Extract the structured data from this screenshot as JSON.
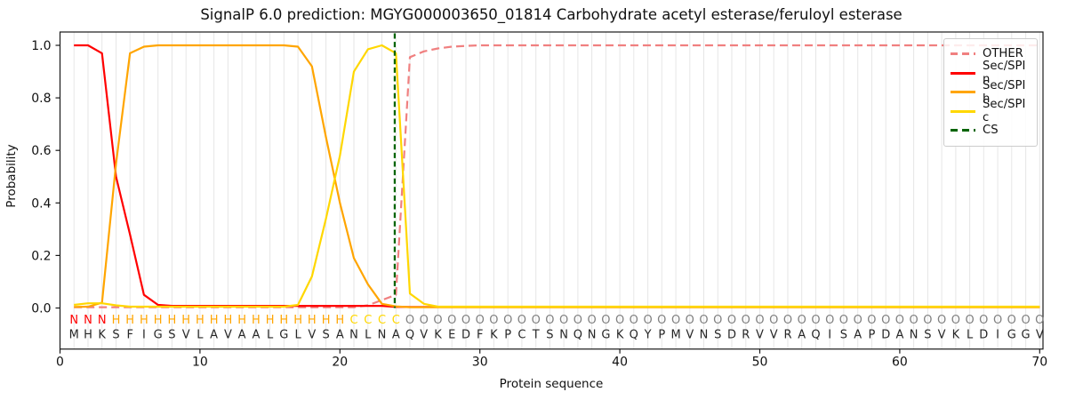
{
  "chart_data": {
    "type": "line",
    "title": "SignalP 6.0 prediction: MGYG000003650_01814 Carbohydrate acetyl esterase/feruloyl esterase",
    "xlabel": "Protein sequence",
    "ylabel": "Probability",
    "xlim": [
      0,
      70.2
    ],
    "ylim": [
      -0.15,
      1.05
    ],
    "x_ticks": [
      0,
      10,
      20,
      30,
      40,
      50,
      60,
      70
    ],
    "y_ticks": [
      "0.0",
      "0.2",
      "0.4",
      "0.6",
      "0.8",
      "1.0"
    ],
    "grid": "vertical-per-residue",
    "legend_position": "upper right",
    "positions_start": 1,
    "series": [
      {
        "name": "OTHER",
        "color": "#f08080",
        "style": "dashed",
        "values": [
          0.003,
          0.003,
          0.003,
          0.003,
          0.003,
          0.003,
          0.003,
          0.003,
          0.003,
          0.003,
          0.003,
          0.003,
          0.003,
          0.003,
          0.003,
          0.003,
          0.003,
          0.003,
          0.003,
          0.003,
          0.003,
          0.01,
          0.03,
          0.05,
          0.955,
          0.977,
          0.988,
          0.995,
          0.998,
          1.0,
          1.0,
          1.0,
          1.0,
          1.0,
          1.0,
          1.0,
          1.0,
          1.0,
          1.0,
          1.0,
          1.0,
          1.0,
          1.0,
          1.0,
          1.0,
          1.0,
          1.0,
          1.0,
          1.0,
          1.0,
          1.0,
          1.0,
          1.0,
          1.0,
          1.0,
          1.0,
          1.0,
          1.0,
          1.0,
          1.0,
          1.0,
          1.0,
          1.0,
          1.0,
          1.0,
          1.0,
          1.0,
          1.0,
          1.0,
          1.0
        ]
      },
      {
        "name": "Sec/SPI n",
        "color": "#ff0000",
        "style": "solid",
        "values": [
          1.0,
          1.0,
          0.97,
          0.5,
          0.28,
          0.05,
          0.012,
          0.008,
          0.008,
          0.008,
          0.008,
          0.008,
          0.008,
          0.008,
          0.008,
          0.008,
          0.008,
          0.008,
          0.008,
          0.008,
          0.008,
          0.008,
          0.008,
          0.004,
          0.004,
          0.004,
          0.004,
          0.004,
          0.004,
          0.004,
          0.004,
          0.004,
          0.004,
          0.004,
          0.004,
          0.004,
          0.004,
          0.004,
          0.004,
          0.004,
          0.004,
          0.004,
          0.004,
          0.004,
          0.004,
          0.004,
          0.004,
          0.004,
          0.004,
          0.004,
          0.004,
          0.004,
          0.004,
          0.004,
          0.004,
          0.004,
          0.004,
          0.004,
          0.004,
          0.004,
          0.004,
          0.004,
          0.004,
          0.004,
          0.004,
          0.004,
          0.004,
          0.004,
          0.004,
          0.004
        ]
      },
      {
        "name": "Sec/SPI h",
        "color": "#ffa500",
        "style": "solid",
        "values": [
          0.004,
          0.005,
          0.02,
          0.55,
          0.97,
          0.995,
          1.0,
          1.0,
          1.0,
          1.0,
          1.0,
          1.0,
          1.0,
          1.0,
          1.0,
          1.0,
          0.995,
          0.92,
          0.65,
          0.4,
          0.19,
          0.09,
          0.016,
          0.006,
          0.003,
          0.003,
          0.003,
          0.003,
          0.003,
          0.003,
          0.003,
          0.003,
          0.003,
          0.003,
          0.003,
          0.003,
          0.003,
          0.003,
          0.003,
          0.003,
          0.003,
          0.003,
          0.003,
          0.003,
          0.003,
          0.003,
          0.003,
          0.003,
          0.003,
          0.003,
          0.003,
          0.003,
          0.003,
          0.003,
          0.003,
          0.003,
          0.003,
          0.003,
          0.003,
          0.003,
          0.003,
          0.003,
          0.003,
          0.003,
          0.003,
          0.003,
          0.003,
          0.003,
          0.003,
          0.003
        ]
      },
      {
        "name": "Sec/SPI c",
        "color": "#ffd700",
        "style": "solid",
        "values": [
          0.012,
          0.018,
          0.018,
          0.01,
          0.005,
          0.005,
          0.005,
          0.005,
          0.005,
          0.005,
          0.005,
          0.005,
          0.005,
          0.005,
          0.005,
          0.005,
          0.012,
          0.12,
          0.34,
          0.58,
          0.9,
          0.985,
          1.0,
          0.97,
          0.055,
          0.016,
          0.005,
          0.005,
          0.005,
          0.005,
          0.005,
          0.005,
          0.005,
          0.005,
          0.005,
          0.005,
          0.005,
          0.005,
          0.005,
          0.005,
          0.005,
          0.005,
          0.005,
          0.005,
          0.005,
          0.005,
          0.005,
          0.005,
          0.005,
          0.005,
          0.005,
          0.005,
          0.005,
          0.005,
          0.005,
          0.005,
          0.005,
          0.005,
          0.005,
          0.005,
          0.005,
          0.005,
          0.005,
          0.005,
          0.005,
          0.005,
          0.005,
          0.005,
          0.005,
          0.005
        ]
      }
    ],
    "cs_line": {
      "name": "CS",
      "color": "#006400",
      "style": "dashed",
      "position": 24
    },
    "sequence": "MHKSFIGSVLAVAALGLVSANLNAQVKEDFKPCTSNQNGKQYPMVNSDRVVRAQISAPDANSVKLDIGGV",
    "region_labels": "NNNHHHHHHHHHHHHHHHHHCCCCOOOOOOOOOOOOOOOOOOOOOOOOOOOOOOOOOOOOOOOOOOOOOO",
    "region_colors": {
      "N": "#ff0000",
      "H": "#ffa500",
      "C": "#ffd700",
      "O": "#808080"
    },
    "sequence_color": "#262626",
    "grid_color": "#e6e6e6",
    "spine_color": "#1a1a1a"
  }
}
